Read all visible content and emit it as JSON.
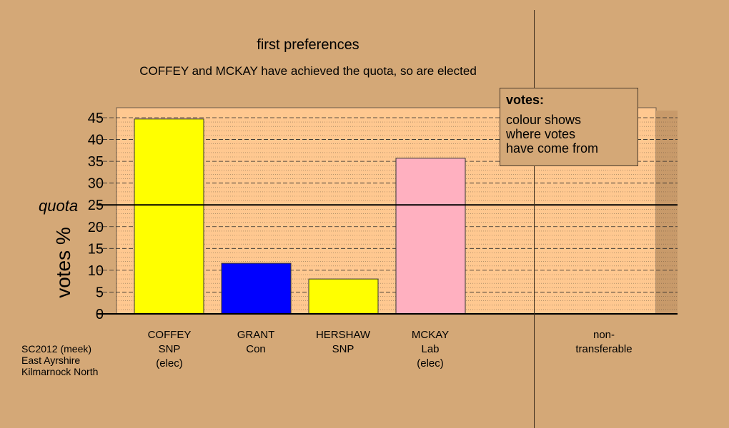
{
  "chart_data": {
    "type": "bar",
    "title": "first preferences",
    "subtitle": "COFFEY and MCKAY have achieved the quota, so are elected",
    "ylabel": "votes %",
    "ylim": [
      0,
      45
    ],
    "yticks": [
      0,
      5,
      10,
      15,
      20,
      25,
      30,
      35,
      40,
      45
    ],
    "quota": {
      "label": "quota",
      "value": 25
    },
    "categories": [
      {
        "name": "COFFEY",
        "party": "SNP",
        "status": "(elec)",
        "value": 44.7,
        "color": "#ffff00"
      },
      {
        "name": "GRANT",
        "party": "Con",
        "status": "",
        "value": 11.6,
        "color": "#0000ff"
      },
      {
        "name": "HERSHAW",
        "party": "SNP",
        "status": "",
        "value": 8.0,
        "color": "#ffff00"
      },
      {
        "name": "MCKAY",
        "party": "Lab",
        "status": "(elec)",
        "value": 35.7,
        "color": "#ffb0c0"
      }
    ],
    "non_transferable": {
      "label_line1": "non-",
      "label_line2": "transferable",
      "value": 0
    },
    "legend": {
      "title": "votes:",
      "line1": "colour shows",
      "line2": "where votes",
      "line3": "have come from"
    },
    "grid": true
  },
  "source": {
    "line1": "SC2012 (meek)",
    "line2": "East Ayrshire",
    "line3": "Kilmarnock North"
  },
  "colors": {
    "background": "#d4a877",
    "plot_background": "#ffc890",
    "gridline": "#5a4a3a"
  }
}
